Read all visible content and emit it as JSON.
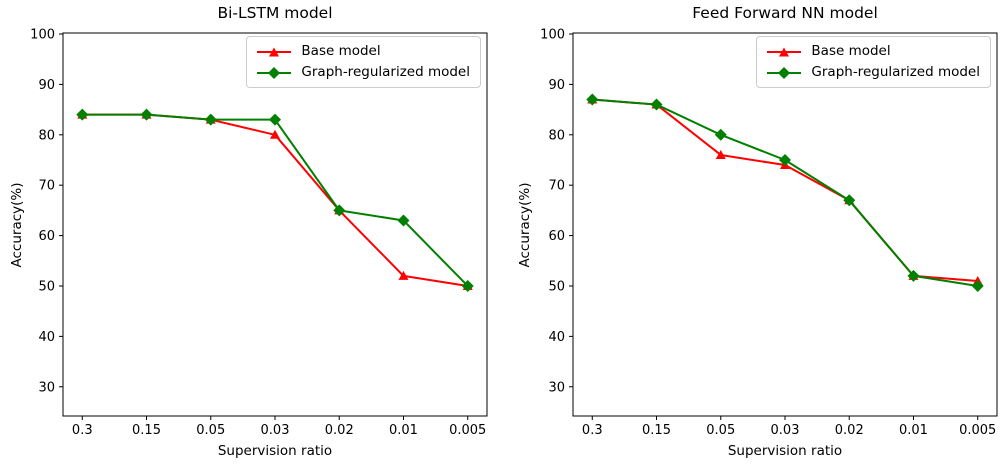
{
  "chart_data": [
    {
      "type": "line",
      "title": "Bi-LSTM model",
      "xlabel": "Supervision ratio",
      "ylabel": "Accuracy(%)",
      "categories": [
        "0.3",
        "0.15",
        "0.05",
        "0.03",
        "0.02",
        "0.01",
        "0.005"
      ],
      "series": [
        {
          "name": "Base model",
          "color": "#ff0000",
          "marker": "triangle",
          "values": [
            84,
            84,
            83,
            80,
            65,
            52,
            50
          ]
        },
        {
          "name": "Graph-regularized model",
          "color": "#008000",
          "marker": "diamond",
          "values": [
            84,
            84,
            83,
            83,
            65,
            63,
            50
          ]
        }
      ],
      "yticks": [
        30,
        40,
        50,
        60,
        70,
        80,
        90,
        100
      ],
      "ylim": [
        24.2,
        100.2
      ],
      "grid": false,
      "legend_position": "upper right"
    },
    {
      "type": "line",
      "title": "Feed Forward NN model",
      "xlabel": "Supervision ratio",
      "ylabel": "Accuracy(%)",
      "categories": [
        "0.3",
        "0.15",
        "0.05",
        "0.03",
        "0.02",
        "0.01",
        "0.005"
      ],
      "series": [
        {
          "name": "Base model",
          "color": "#ff0000",
          "marker": "triangle",
          "values": [
            87,
            86,
            76,
            74,
            67,
            52,
            51
          ]
        },
        {
          "name": "Graph-regularized model",
          "color": "#008000",
          "marker": "diamond",
          "values": [
            87,
            86,
            80,
            75,
            67,
            52,
            50
          ]
        }
      ],
      "yticks": [
        30,
        40,
        50,
        60,
        70,
        80,
        90,
        100
      ],
      "ylim": [
        24.2,
        100.2
      ],
      "grid": false,
      "legend_position": "upper right"
    }
  ]
}
